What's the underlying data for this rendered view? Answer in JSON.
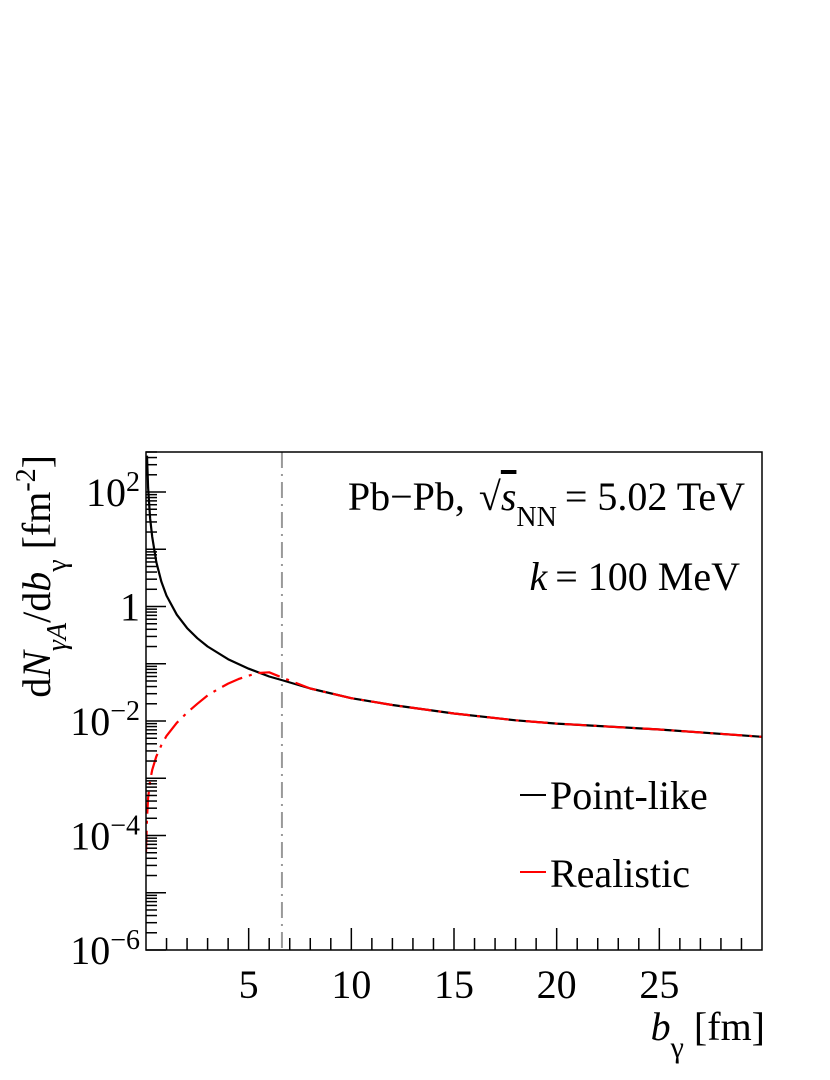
{
  "chart_data": {
    "type": "line",
    "xlabel": {
      "main": "b",
      "sub": "γ",
      "unit": "[fm]"
    },
    "ylabel": {
      "prefix": "d",
      "N": "N",
      "sub": "γA",
      "mid": "/d",
      "b": "b",
      "sub2": "γ",
      "unit": "[fm",
      "unit_sup": "-2",
      "unit_end": "]"
    },
    "xlim": [
      0,
      30
    ],
    "ylim": [
      1e-06,
      500
    ],
    "y_scale": "log",
    "grid": false,
    "x_ticks": [
      5,
      10,
      15,
      20,
      25
    ],
    "x_tick_labels": [
      "5",
      "10",
      "15",
      "20",
      "25"
    ],
    "y_ticks": [
      {
        "value": 100,
        "base": "10",
        "exp": "2"
      },
      {
        "value": 1,
        "base": "1",
        "exp": ""
      },
      {
        "value": 0.01,
        "base": "10",
        "exp": "−2"
      },
      {
        "value": 0.0001,
        "base": "10",
        "exp": "−4"
      },
      {
        "value": 1e-06,
        "base": "10",
        "exp": "−6"
      }
    ],
    "annotations": {
      "system": "Pb−Pb,",
      "sqrt_symbol": "√",
      "s": "s",
      "s_sub": "NN",
      "energy": "= 5.02 TeV",
      "k_symbol": "k",
      "k_value": "= 100 MeV"
    },
    "vline": {
      "x": 6.62,
      "color": "#999999"
    },
    "legend": {
      "placement": "bottom-right"
    },
    "series": [
      {
        "name": "Point-like",
        "color": "#000000",
        "dash": "solid",
        "x": [
          0.05,
          0.1,
          0.2,
          0.3,
          0.5,
          0.75,
          1.0,
          1.5,
          2.0,
          2.5,
          3.0,
          4.0,
          5.0,
          6.0,
          6.6,
          8.0,
          10.0,
          12.0,
          15.0,
          18.0,
          20.0,
          25.0,
          30.0
        ],
        "y": [
          430,
          120,
          35,
          16.5,
          6.0,
          2.7,
          1.55,
          0.72,
          0.42,
          0.28,
          0.2,
          0.12,
          0.082,
          0.06,
          0.052,
          0.037,
          0.025,
          0.019,
          0.0135,
          0.0103,
          0.009,
          0.0071,
          0.0053
        ]
      },
      {
        "name": "Realistic",
        "color": "#ff0000",
        "dash": "dashdot",
        "x": [
          0.0,
          0.05,
          0.1,
          0.2,
          0.3,
          0.5,
          0.75,
          1.0,
          1.5,
          2.0,
          2.5,
          3.0,
          3.5,
          4.0,
          4.5,
          5.0,
          5.5,
          6.0,
          6.6,
          8.0,
          10.0,
          12.0,
          15.0,
          18.0,
          20.0,
          25.0,
          30.0
        ],
        "y": [
          5e-05,
          0.0002,
          0.00045,
          0.0009,
          0.0014,
          0.0024,
          0.0038,
          0.0055,
          0.0093,
          0.014,
          0.02,
          0.028,
          0.036,
          0.045,
          0.054,
          0.062,
          0.069,
          0.071,
          0.058,
          0.037,
          0.025,
          0.019,
          0.0135,
          0.0103,
          0.009,
          0.0071,
          0.0053
        ]
      }
    ]
  }
}
